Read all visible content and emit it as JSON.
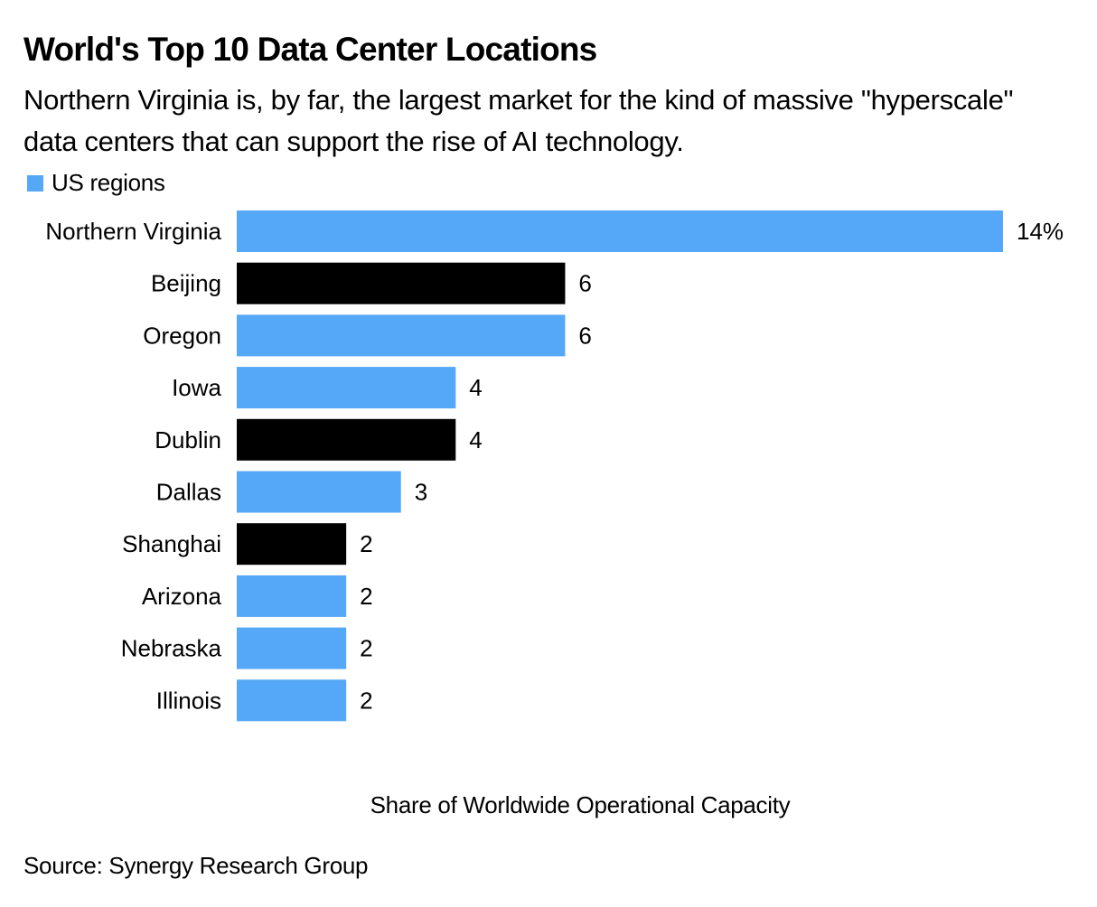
{
  "header": {
    "title": "World's Top 10 Data Center Locations",
    "subtitle": "Northern Virginia is, by far, the largest market for the kind of massive \"hyperscale\" data centers that can support the rise of AI technology."
  },
  "legend": {
    "items": [
      {
        "label": "US regions",
        "color": "#55a8f8"
      }
    ]
  },
  "colors": {
    "us": "#55a8f8",
    "non_us": "#000000"
  },
  "footer": {
    "source": "Source: Synergy Research Group"
  },
  "chart_data": {
    "type": "bar",
    "orientation": "horizontal",
    "title": "World's Top 10 Data Center Locations",
    "subtitle": "Northern Virginia is, by far, the largest market for the kind of massive \"hyperscale\" data centers that can support the rise of AI technology.",
    "xlabel": "Share of Worldwide Operational Capacity",
    "ylabel": "",
    "unit": "%",
    "xlim": [
      0,
      14
    ],
    "grid": false,
    "legend_position": "top-left",
    "categories": [
      "Northern Virginia",
      "Beijing",
      "Oregon",
      "Iowa",
      "Dublin",
      "Dallas",
      "Shanghai",
      "Arizona",
      "Nebraska",
      "Illinois"
    ],
    "values": [
      14,
      6,
      6,
      4,
      4,
      3,
      2,
      2,
      2,
      2
    ],
    "data_labels": [
      "14%",
      "6",
      "6",
      "4",
      "4",
      "3",
      "2",
      "2",
      "2",
      "2"
    ],
    "is_us_region": [
      true,
      false,
      true,
      true,
      false,
      true,
      false,
      true,
      true,
      true
    ],
    "legend": [
      "US regions"
    ]
  }
}
